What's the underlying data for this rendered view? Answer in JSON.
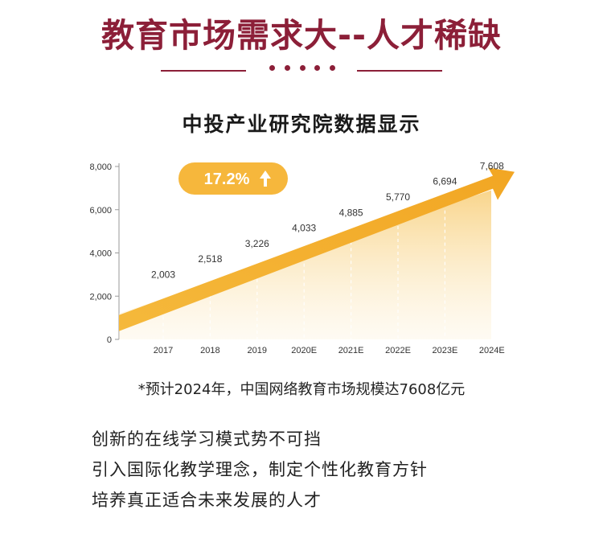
{
  "header": {
    "title": "教育市场需求大--人才稀缺"
  },
  "chart_data": {
    "type": "area",
    "title": "中投产业研究院数据显示",
    "categories": [
      "2017",
      "2018",
      "2019",
      "2020E",
      "2021E",
      "2022E",
      "2023E",
      "2024E"
    ],
    "values": [
      2003,
      2518,
      3226,
      4033,
      4885,
      5770,
      6694,
      7608
    ],
    "value_labels": [
      "2,003",
      "2,518",
      "3,226",
      "4,033",
      "4,885",
      "5,770",
      "6,694",
      "7,608"
    ],
    "yticks": [
      "0",
      "2,000",
      "4,000",
      "6,000",
      "8,000"
    ],
    "ylim": [
      0,
      8000
    ],
    "grid": false,
    "growth_badge": "17.2%",
    "colors": {
      "arrow": "#f3b53a",
      "fill": "#fbe2a5",
      "badge": "#f6b73c"
    }
  },
  "footnote": "*预计2024年，中国网络教育市场规模达7608亿元",
  "bullets": [
    "创新的在线学习模式势不可挡",
    "引入国际化教学理念，制定个性化教育方针",
    "培养真正适合未来发展的人才"
  ]
}
